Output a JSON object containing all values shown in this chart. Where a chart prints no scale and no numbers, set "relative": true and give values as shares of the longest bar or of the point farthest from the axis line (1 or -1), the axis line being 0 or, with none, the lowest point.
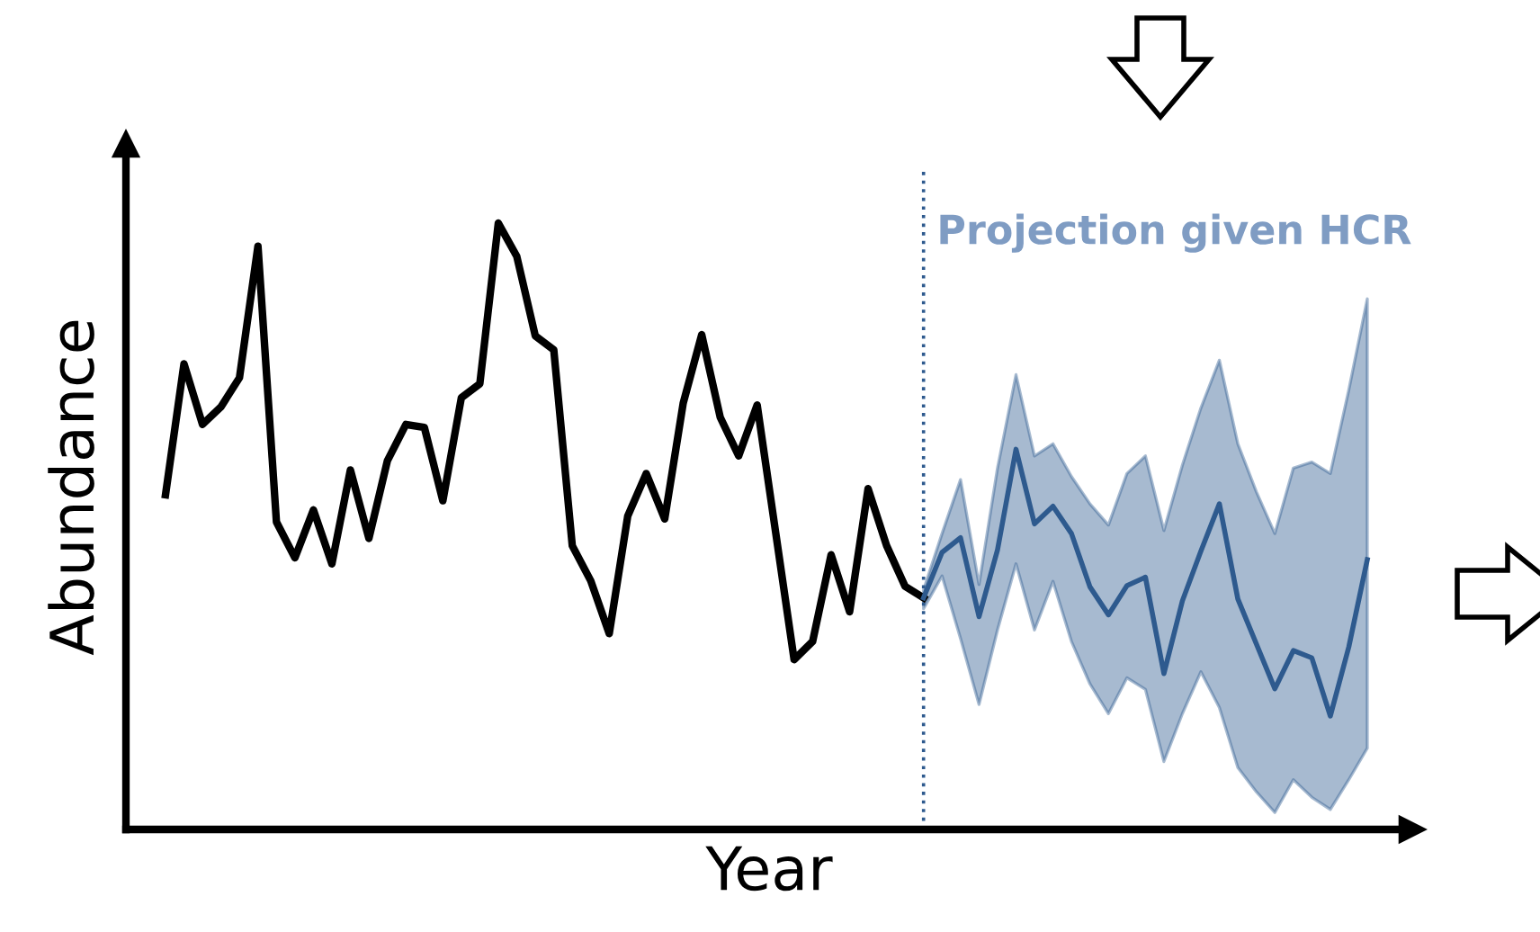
{
  "chart_data": {
    "type": "line",
    "relative": true,
    "xlabel": "Year",
    "ylabel": "Abundance",
    "annotations": [
      "Projection given HCR"
    ],
    "categories": [
      null,
      null,
      null,
      null,
      null,
      null,
      null,
      null,
      null,
      null,
      null,
      null,
      null,
      null,
      null,
      null,
      null,
      null,
      null,
      null,
      null,
      null,
      null,
      null,
      null,
      null,
      null,
      null,
      null,
      null,
      null,
      null,
      null,
      null,
      null,
      null,
      null,
      null,
      null,
      null,
      null,
      null,
      null,
      null,
      null,
      null,
      null,
      null,
      null,
      null,
      null,
      null,
      null,
      null,
      null,
      null,
      null,
      null,
      null,
      null,
      null,
      null,
      null,
      null,
      null,
      null
    ],
    "series": [
      {
        "color": "#000000",
        "values": [
          0.552,
          0.768,
          0.668,
          0.697,
          0.745,
          0.962,
          0.507,
          0.448,
          0.527,
          0.438,
          0.593,
          0.48,
          0.608,
          0.668,
          0.663,
          0.542,
          0.712,
          0.735,
          1.0,
          0.945,
          0.814,
          0.791,
          0.468,
          0.41,
          0.323,
          0.517,
          0.587,
          0.512,
          0.703,
          0.816,
          0.68,
          0.616,
          0.7,
          0.49,
          0.28,
          0.31,
          0.453,
          0.359,
          0.562,
          0.468,
          0.401,
          0.382,
          null,
          null,
          null,
          null,
          null,
          null,
          null,
          null,
          null,
          null,
          null,
          null,
          null,
          null,
          null,
          null,
          null,
          null,
          null,
          null,
          null,
          null,
          null,
          null
        ]
      },
      {
        "color": "#2e5a8e",
        "values": [
          null,
          null,
          null,
          null,
          null,
          null,
          null,
          null,
          null,
          null,
          null,
          null,
          null,
          null,
          null,
          null,
          null,
          null,
          null,
          null,
          null,
          null,
          null,
          null,
          null,
          null,
          null,
          null,
          null,
          null,
          null,
          null,
          null,
          null,
          null,
          null,
          null,
          null,
          null,
          null,
          null,
          0.382,
          0.457,
          0.481,
          0.351,
          0.461,
          0.627,
          0.504,
          0.533,
          0.488,
          0.4,
          0.354,
          0.402,
          0.416,
          0.257,
          0.377,
          0.459,
          0.537,
          0.38,
          0.306,
          0.232,
          0.295,
          0.283,
          0.187,
          0.301,
          0.445
        ],
        "upper": [
          null,
          null,
          null,
          null,
          null,
          null,
          null,
          null,
          null,
          null,
          null,
          null,
          null,
          null,
          null,
          null,
          null,
          null,
          null,
          null,
          null,
          null,
          null,
          null,
          null,
          null,
          null,
          null,
          null,
          null,
          null,
          null,
          null,
          null,
          null,
          null,
          null,
          null,
          null,
          null,
          null,
          0.395,
          0.488,
          0.577,
          0.404,
          0.596,
          0.75,
          0.616,
          0.636,
          0.582,
          0.537,
          0.502,
          0.587,
          0.616,
          0.493,
          0.601,
          0.695,
          0.774,
          0.636,
          0.557,
          0.488,
          0.596,
          0.606,
          0.587,
          0.725,
          0.875
        ],
        "lower": [
          null,
          null,
          null,
          null,
          null,
          null,
          null,
          null,
          null,
          null,
          null,
          null,
          null,
          null,
          null,
          null,
          null,
          null,
          null,
          null,
          null,
          null,
          null,
          null,
          null,
          null,
          null,
          null,
          null,
          null,
          null,
          null,
          null,
          null,
          null,
          null,
          null,
          null,
          null,
          null,
          null,
          0.364,
          0.418,
          0.315,
          0.206,
          0.329,
          0.438,
          0.329,
          0.409,
          0.31,
          0.24,
          0.191,
          0.25,
          0.231,
          0.112,
          0.191,
          0.26,
          0.201,
          0.102,
          0.062,
          0.028,
          0.082,
          0.053,
          0.033,
          0.082,
          0.134
        ]
      }
    ],
    "legend": false
  }
}
